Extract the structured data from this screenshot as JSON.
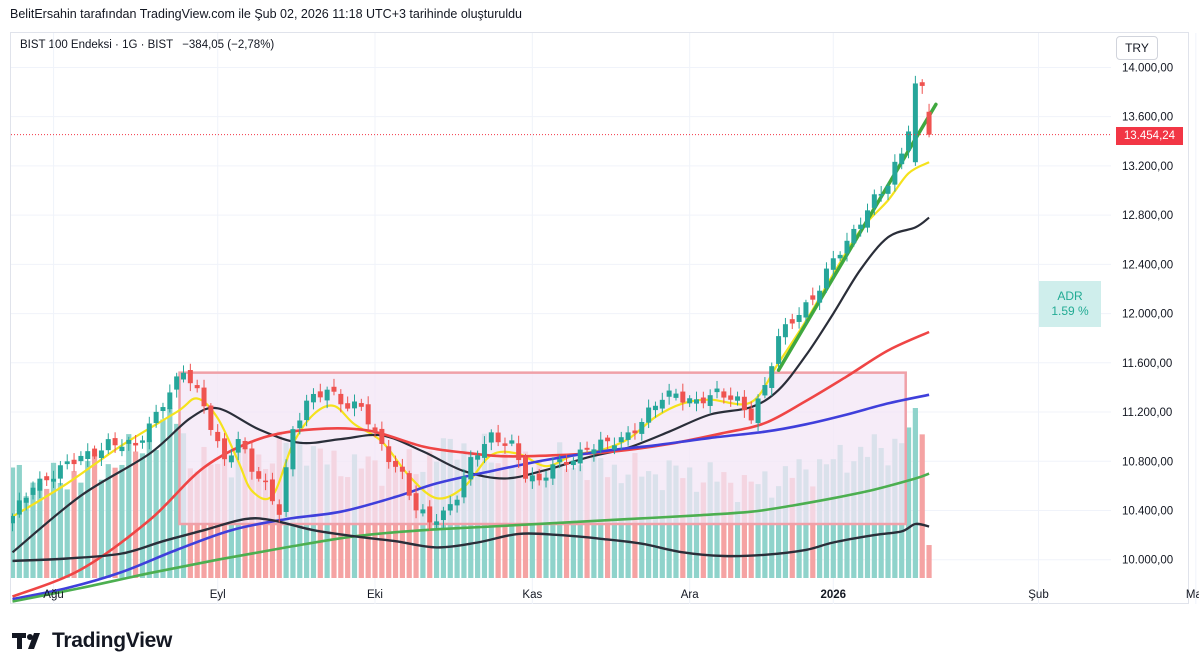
{
  "header": {
    "text": "BelitErsahin tarafından TradingView.com ile Şub 02, 2026 11:18 UTC+3 tarihinde oluşturuldu"
  },
  "legend": {
    "symbol": "BIST 100 Endeksi · 1G · BIST",
    "change": "−384,05 (−2,78%)"
  },
  "currency": "TRY",
  "last_price_label": "13.454,24",
  "adr": {
    "label": "ADR",
    "value": "1.59 %"
  },
  "brand": "TradingView",
  "colors": {
    "up": "#26a69a",
    "down": "#ef5350",
    "range_box": "#f0a0a8",
    "ma_yellow": "#f5e21c",
    "ma_black": "#2a2e39",
    "ma_red": "#ef4545",
    "ma_blue": "#3f3fdb",
    "ma_green": "#4caf50",
    "trend": "#3fa83f"
  },
  "chart_data": {
    "type": "candlestick",
    "title": "BIST 100 Endeksi · 1G · BIST",
    "y_ticks": [
      "14.000,00",
      "13.600,00",
      "13.200,00",
      "12.800,00",
      "12.400,00",
      "12.000,00",
      "11.600,00",
      "11.200,00",
      "10.800,00",
      "10.400,00",
      "10.000,00"
    ],
    "y_tick_values": [
      14000,
      13600,
      13200,
      12800,
      12400,
      12000,
      11600,
      11200,
      10800,
      10400,
      10000
    ],
    "ylim": [
      9640,
      14280
    ],
    "x_ticks": [
      "Ağu",
      "Eyl",
      "Eki",
      "Kas",
      "Ara",
      "2026",
      "Şub",
      "Mar"
    ],
    "x_tick_index": [
      6,
      30,
      53,
      76,
      99,
      120,
      150,
      173
    ],
    "last_price": 13454.24,
    "anchors": [
      [
        0,
        10330
      ],
      [
        3,
        10620
      ],
      [
        6,
        10700
      ],
      [
        10,
        10820
      ],
      [
        14,
        10960
      ],
      [
        18,
        10900
      ],
      [
        22,
        11300
      ],
      [
        25,
        11520
      ],
      [
        28,
        11250
      ],
      [
        31,
        10820
      ],
      [
        33,
        10960
      ],
      [
        35,
        10720
      ],
      [
        37,
        10600
      ],
      [
        39,
        10420
      ],
      [
        41,
        11050
      ],
      [
        43,
        11250
      ],
      [
        46,
        11400
      ],
      [
        49,
        11260
      ],
      [
        51,
        11220
      ],
      [
        53,
        11000
      ],
      [
        55,
        10850
      ],
      [
        57,
        10700
      ],
      [
        59,
        10400
      ],
      [
        61,
        10290
      ],
      [
        63,
        10380
      ],
      [
        65,
        10550
      ],
      [
        67,
        10800
      ],
      [
        70,
        10980
      ],
      [
        73,
        10960
      ],
      [
        75,
        10700
      ],
      [
        77,
        10600
      ],
      [
        79,
        10760
      ],
      [
        81,
        10820
      ],
      [
        84,
        10900
      ],
      [
        87,
        10930
      ],
      [
        90,
        11030
      ],
      [
        93,
        11190
      ],
      [
        95,
        11300
      ],
      [
        97,
        11350
      ],
      [
        100,
        11300
      ],
      [
        103,
        11330
      ],
      [
        106,
        11300
      ],
      [
        108,
        11190
      ],
      [
        110,
        11400
      ],
      [
        112,
        11780
      ],
      [
        114,
        11950
      ],
      [
        116,
        12080
      ],
      [
        118,
        12220
      ],
      [
        120,
        12420
      ],
      [
        122,
        12560
      ],
      [
        124,
        12780
      ],
      [
        126,
        12950
      ],
      [
        128,
        13040
      ],
      [
        130,
        13300
      ],
      [
        131,
        13480
      ],
      [
        132,
        13870
      ],
      [
        133,
        13850
      ],
      [
        134,
        13454
      ]
    ],
    "moving_averages": [
      {
        "name": "yellow",
        "anchors": [
          [
            0,
            10350
          ],
          [
            8,
            10620
          ],
          [
            16,
            10930
          ],
          [
            24,
            11200
          ],
          [
            27,
            11310
          ],
          [
            30,
            11150
          ],
          [
            33,
            10800
          ],
          [
            35,
            10560
          ],
          [
            38,
            10520
          ],
          [
            41,
            10940
          ],
          [
            44,
            11180
          ],
          [
            47,
            11250
          ],
          [
            50,
            11100
          ],
          [
            54,
            10960
          ],
          [
            58,
            10680
          ],
          [
            62,
            10500
          ],
          [
            66,
            10590
          ],
          [
            70,
            10850
          ],
          [
            74,
            10860
          ],
          [
            78,
            10760
          ],
          [
            82,
            10850
          ],
          [
            86,
            10890
          ],
          [
            90,
            10980
          ],
          [
            94,
            11160
          ],
          [
            98,
            11270
          ],
          [
            102,
            11300
          ],
          [
            108,
            11280
          ],
          [
            112,
            11600
          ],
          [
            116,
            11940
          ],
          [
            120,
            12320
          ],
          [
            124,
            12680
          ],
          [
            128,
            12920
          ],
          [
            131,
            13140
          ],
          [
            134,
            13230
          ]
        ]
      },
      {
        "name": "black",
        "anchors": [
          [
            0,
            10060
          ],
          [
            10,
            10520
          ],
          [
            20,
            10860
          ],
          [
            26,
            11150
          ],
          [
            30,
            11230
          ],
          [
            36,
            11060
          ],
          [
            42,
            10950
          ],
          [
            48,
            10980
          ],
          [
            54,
            11010
          ],
          [
            60,
            10880
          ],
          [
            66,
            10720
          ],
          [
            72,
            10660
          ],
          [
            78,
            10730
          ],
          [
            84,
            10830
          ],
          [
            90,
            10910
          ],
          [
            96,
            11040
          ],
          [
            102,
            11180
          ],
          [
            108,
            11240
          ],
          [
            112,
            11380
          ],
          [
            116,
            11660
          ],
          [
            120,
            12000
          ],
          [
            124,
            12360
          ],
          [
            128,
            12620
          ],
          [
            132,
            12700
          ],
          [
            134,
            12780
          ]
        ]
      },
      {
        "name": "red",
        "anchors": [
          [
            0,
            9700
          ],
          [
            10,
            9920
          ],
          [
            20,
            10320
          ],
          [
            28,
            10750
          ],
          [
            36,
            10980
          ],
          [
            44,
            11060
          ],
          [
            52,
            11050
          ],
          [
            60,
            10920
          ],
          [
            66,
            10870
          ],
          [
            72,
            10840
          ],
          [
            80,
            10850
          ],
          [
            88,
            10880
          ],
          [
            96,
            10940
          ],
          [
            104,
            11030
          ],
          [
            110,
            11110
          ],
          [
            116,
            11290
          ],
          [
            122,
            11490
          ],
          [
            128,
            11700
          ],
          [
            134,
            11850
          ]
        ]
      },
      {
        "name": "blue",
        "anchors": [
          [
            0,
            9680
          ],
          [
            8,
            9770
          ],
          [
            16,
            9900
          ],
          [
            24,
            10080
          ],
          [
            32,
            10240
          ],
          [
            40,
            10330
          ],
          [
            48,
            10390
          ],
          [
            56,
            10510
          ],
          [
            62,
            10620
          ],
          [
            70,
            10720
          ],
          [
            78,
            10810
          ],
          [
            86,
            10880
          ],
          [
            94,
            10930
          ],
          [
            102,
            10990
          ],
          [
            110,
            11040
          ],
          [
            116,
            11100
          ],
          [
            122,
            11180
          ],
          [
            128,
            11270
          ],
          [
            134,
            11340
          ]
        ]
      },
      {
        "name": "green",
        "anchors": [
          [
            0,
            9660
          ],
          [
            10,
            9770
          ],
          [
            20,
            9890
          ],
          [
            30,
            10000
          ],
          [
            40,
            10100
          ],
          [
            50,
            10190
          ],
          [
            60,
            10240
          ],
          [
            70,
            10270
          ],
          [
            80,
            10300
          ],
          [
            90,
            10330
          ],
          [
            100,
            10360
          ],
          [
            108,
            10390
          ],
          [
            114,
            10440
          ],
          [
            120,
            10500
          ],
          [
            126,
            10570
          ],
          [
            132,
            10660
          ],
          [
            134,
            10700
          ]
        ]
      },
      {
        "name": "darkgray",
        "anchors": [
          [
            0,
            9990
          ],
          [
            8,
            10010
          ],
          [
            16,
            10050
          ],
          [
            22,
            10150
          ],
          [
            28,
            10240
          ],
          [
            34,
            10330
          ],
          [
            38,
            10320
          ],
          [
            44,
            10240
          ],
          [
            50,
            10190
          ],
          [
            56,
            10150
          ],
          [
            62,
            10100
          ],
          [
            68,
            10140
          ],
          [
            74,
            10210
          ],
          [
            80,
            10200
          ],
          [
            86,
            10170
          ],
          [
            92,
            10130
          ],
          [
            98,
            10060
          ],
          [
            104,
            10030
          ],
          [
            110,
            10040
          ],
          [
            116,
            10080
          ],
          [
            120,
            10140
          ],
          [
            126,
            10200
          ],
          [
            130,
            10230
          ],
          [
            132,
            10290
          ],
          [
            134,
            10270
          ]
        ]
      }
    ],
    "volume": {
      "anchors": [
        [
          0,
          0.6
        ],
        [
          5,
          0.55
        ],
        [
          10,
          0.62
        ],
        [
          15,
          0.68
        ],
        [
          20,
          0.8
        ],
        [
          24,
          0.96
        ],
        [
          26,
          0.7
        ],
        [
          28,
          0.66
        ],
        [
          32,
          0.7
        ],
        [
          36,
          0.68
        ],
        [
          40,
          0.8
        ],
        [
          43,
          0.78
        ],
        [
          46,
          0.68
        ],
        [
          50,
          0.66
        ],
        [
          54,
          0.66
        ],
        [
          58,
          0.66
        ],
        [
          62,
          0.72
        ],
        [
          65,
          0.8
        ],
        [
          68,
          0.74
        ],
        [
          72,
          0.72
        ],
        [
          76,
          0.68
        ],
        [
          80,
          0.68
        ],
        [
          84,
          0.66
        ],
        [
          88,
          0.64
        ],
        [
          92,
          0.62
        ],
        [
          96,
          0.62
        ],
        [
          100,
          0.6
        ],
        [
          104,
          0.58
        ],
        [
          108,
          0.54
        ],
        [
          112,
          0.58
        ],
        [
          116,
          0.64
        ],
        [
          120,
          0.68
        ],
        [
          124,
          0.74
        ],
        [
          128,
          0.76
        ],
        [
          131,
          0.86
        ],
        [
          132,
          0.98
        ],
        [
          133,
          0.92
        ],
        [
          134,
          0.22
        ]
      ]
    },
    "range_box": {
      "x_start": 25,
      "x_end": 130,
      "y_low": 10290,
      "y_high": 11520
    },
    "trendline": {
      "x_start": 112,
      "y_start": 11540,
      "x_end": 135,
      "y_end": 13700
    },
    "range_box_fill": "#f3e5f5"
  }
}
